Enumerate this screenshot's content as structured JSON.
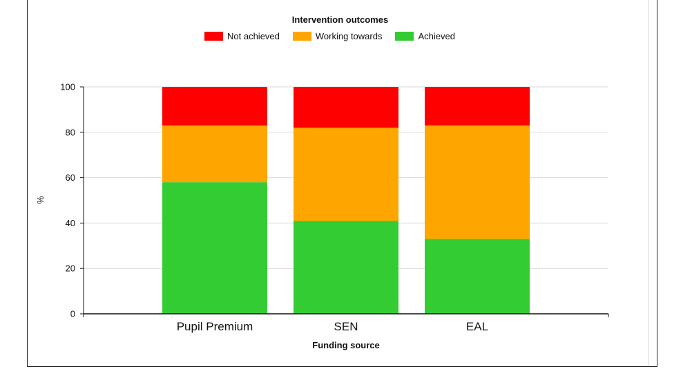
{
  "chart_data": {
    "type": "bar",
    "stacked": true,
    "title": "",
    "legend_title": "Intervention outcomes",
    "legend_position": "top-center",
    "xlabel": "Funding source",
    "ylabel": "%",
    "ylim": [
      0,
      100
    ],
    "yticks": [
      "0",
      "20",
      "40",
      "60",
      "80",
      "100"
    ],
    "grid": true,
    "categories": [
      "Pupil Premium",
      "SEN",
      "EAL"
    ],
    "series": [
      {
        "name": "Achieved",
        "color": "#33cc33",
        "values": [
          58,
          41,
          33
        ]
      },
      {
        "name": "Working towards",
        "color": "#ffa500",
        "values": [
          25,
          41,
          50
        ]
      },
      {
        "name": "Not achieved",
        "color": "#ff0000",
        "values": [
          17,
          18,
          17
        ]
      }
    ],
    "legend_order": [
      "Not achieved",
      "Working towards",
      "Achieved"
    ]
  }
}
